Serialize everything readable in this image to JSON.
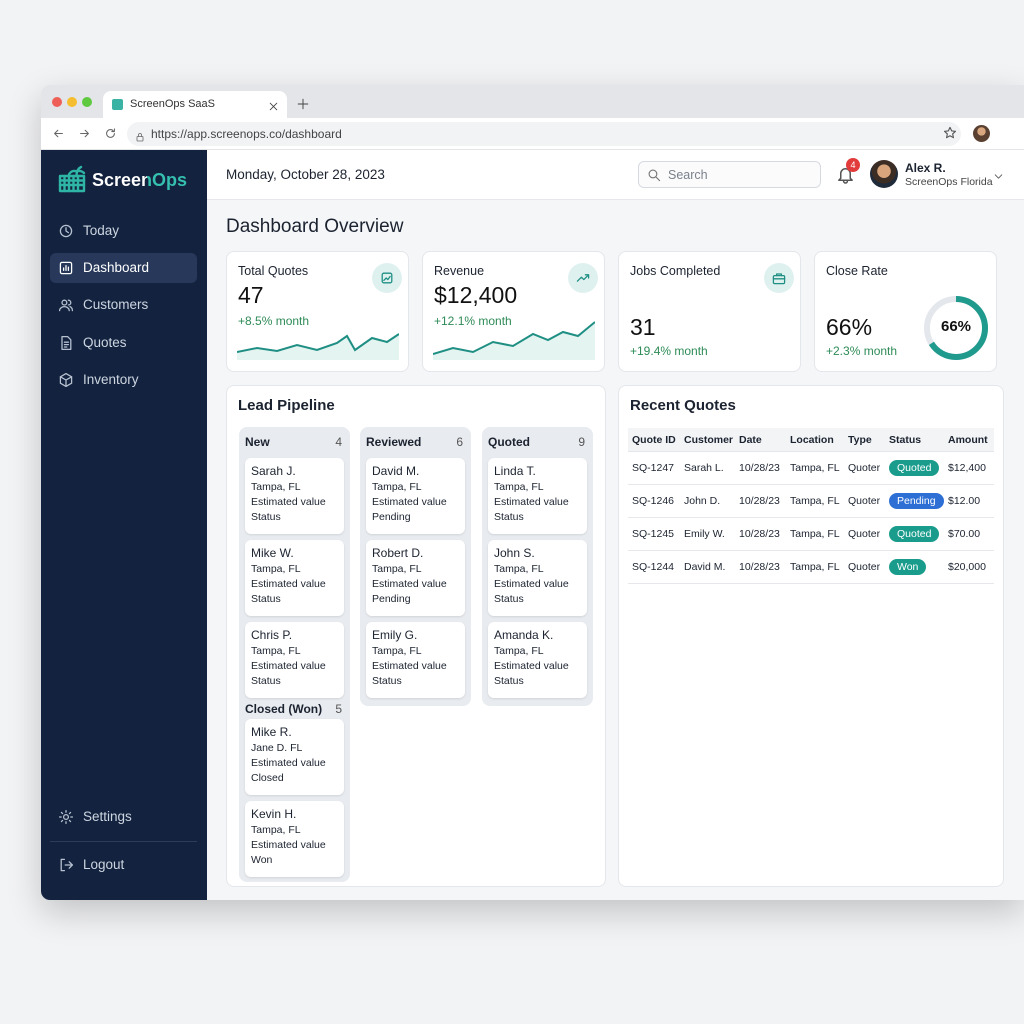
{
  "browser": {
    "tab_title": "ScreenOps SaaS",
    "url": "https://app.screenops.co/dashboard"
  },
  "sidebar": {
    "brand": "ScreenOps",
    "nav": [
      "Today",
      "Dashboard",
      "Customers",
      "Quotes",
      "Inventory"
    ],
    "settings": "Settings",
    "logout": "Logout"
  },
  "header": {
    "date": "Monday, October 28, 2023",
    "search": "Search",
    "notifications": "4",
    "user_name": "Alex R.",
    "user_org": "ScreenOps Florida"
  },
  "page_title": "Dashboard Overview",
  "kpis": [
    {
      "label": "Total Quotes",
      "value": "47",
      "change": "+8.5% month"
    },
    {
      "label": "Revenue",
      "value": "$12,400",
      "change": "+12.1% month"
    },
    {
      "label": "Jobs Completed",
      "value": "31",
      "change": "+19.4% month"
    },
    {
      "label": "Close Rate",
      "value": "66%",
      "change": "+2.3% month",
      "ring_label": "66%"
    }
  ],
  "pipeline": {
    "title": "Lead Pipeline",
    "columns": [
      {
        "name": "New",
        "count": "4",
        "cards": [
          {
            "name": "Sarah J.",
            "location": "Tampa, FL",
            "field": "Estimated value",
            "status": "Status"
          },
          {
            "name": "Mike W.",
            "location": "Tampa, FL",
            "field": "Estimated value",
            "status": "Status"
          },
          {
            "name": "Chris P.",
            "location": "Tampa, FL",
            "field": "Estimated value",
            "status": "Status"
          }
        ]
      },
      {
        "name": "Reviewed",
        "count": "6",
        "cards": [
          {
            "name": "David M.",
            "location": "Tampa, FL",
            "field": "Estimated value",
            "status": "Pending"
          },
          {
            "name": "Robert D.",
            "location": "Tampa, FL",
            "field": "Estimated value",
            "status": "Pending"
          },
          {
            "name": "Emily G.",
            "location": "Tampa, FL",
            "field": "Estimated value",
            "status": "Status"
          }
        ]
      },
      {
        "name": "Quoted",
        "count": "9",
        "cards": [
          {
            "name": "Linda T.",
            "location": "Tampa, FL",
            "field": "Estimated value",
            "status": "Status"
          },
          {
            "name": "John S.",
            "location": "Tampa, FL",
            "field": "Estimated value",
            "status": "Status"
          },
          {
            "name": "Amanda K.",
            "location": "Tampa, FL",
            "field": "Estimated value",
            "status": "Status"
          }
        ]
      },
      {
        "name": "Closed (Won)",
        "count": "5",
        "cards": [
          {
            "name": "Mike R.",
            "location": "Jane D. FL",
            "field": "Estimated value",
            "status": "Closed"
          },
          {
            "name": "Kevin H.",
            "location": "Tampa, FL",
            "field": "Estimated value",
            "status": "Won"
          }
        ]
      }
    ]
  },
  "recent_quotes": {
    "title": "Recent Quotes",
    "headers": [
      "Quote ID",
      "Customer",
      "Date",
      "Location",
      "Type",
      "Status",
      "Amount"
    ],
    "rows": [
      [
        "SQ-1247",
        "Sarah L.",
        "10/28/23",
        "Tampa, FL",
        "Quoter",
        "Quoted",
        "$12,400"
      ],
      [
        "SQ-1246",
        "John D.",
        "10/28/23",
        "Tampa, FL",
        "Quoter",
        "Pending",
        "$12.00"
      ],
      [
        "SQ-1245",
        "Emily W.",
        "10/28/23",
        "Tampa, FL",
        "Quoter",
        "Quoted",
        "$70.00"
      ],
      [
        "SQ-1244",
        "David M.",
        "10/28/23",
        "Tampa, FL",
        "Quoter",
        "Won",
        "$20,000"
      ]
    ],
    "status_colors": [
      "#1a9c8c",
      "#2d6fd5",
      "#1a9c8c",
      "#1a9c8c"
    ]
  }
}
